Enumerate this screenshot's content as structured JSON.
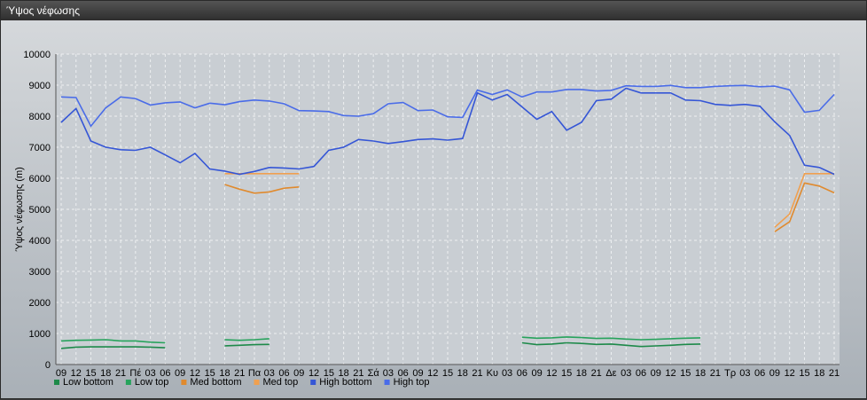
{
  "window": {
    "title": "Ύψος νέφωσης"
  },
  "chart_data": {
    "type": "line",
    "title": "",
    "xlabel": "",
    "ylabel": "Ύψος νέφωσης (m)",
    "ylim": [
      0,
      10000
    ],
    "yticks": [
      0,
      1000,
      2000,
      3000,
      4000,
      5000,
      6000,
      7000,
      8000,
      9000,
      10000
    ],
    "grid": true,
    "legend": "bottom-left",
    "categories": [
      "09",
      "12",
      "15",
      "18",
      "21",
      "Πέ",
      "03",
      "06",
      "09",
      "12",
      "15",
      "18",
      "21",
      "Πα",
      "03",
      "06",
      "09",
      "12",
      "15",
      "18",
      "21",
      "Σά",
      "03",
      "06",
      "09",
      "12",
      "15",
      "18",
      "21",
      "Κυ",
      "03",
      "06",
      "09",
      "12",
      "15",
      "18",
      "21",
      "Δε",
      "03",
      "06",
      "09",
      "12",
      "15",
      "18",
      "21",
      "Τρ",
      "03",
      "06",
      "09",
      "12",
      "15",
      "18",
      "21"
    ],
    "series": [
      {
        "name": "Low bottom",
        "color": "#1e8a4a",
        "values": [
          520,
          560,
          570,
          570,
          570,
          570,
          560,
          540,
          null,
          null,
          null,
          600,
          620,
          640,
          650,
          null,
          null,
          null,
          null,
          null,
          null,
          null,
          null,
          null,
          null,
          null,
          null,
          null,
          null,
          null,
          null,
          700,
          640,
          660,
          700,
          680,
          650,
          660,
          620,
          580,
          600,
          620,
          650,
          660,
          null,
          null,
          null,
          null,
          null,
          null,
          null,
          null,
          null
        ]
      },
      {
        "name": "Low top",
        "color": "#27a35c",
        "values": [
          760,
          780,
          790,
          800,
          760,
          760,
          720,
          700,
          null,
          null,
          null,
          800,
          780,
          800,
          830,
          null,
          null,
          null,
          null,
          null,
          null,
          null,
          null,
          null,
          null,
          null,
          null,
          null,
          null,
          null,
          null,
          880,
          850,
          860,
          890,
          870,
          840,
          850,
          820,
          800,
          810,
          830,
          850,
          860,
          null,
          null,
          null,
          null,
          null,
          null,
          null,
          null,
          null
        ]
      },
      {
        "name": "Med bottom",
        "color": "#e08a2e",
        "values": [
          null,
          null,
          null,
          null,
          null,
          null,
          null,
          null,
          null,
          null,
          null,
          5800,
          5650,
          5520,
          5560,
          5680,
          5720,
          null,
          null,
          null,
          null,
          null,
          null,
          null,
          null,
          null,
          null,
          null,
          null,
          null,
          null,
          null,
          null,
          null,
          null,
          null,
          null,
          null,
          null,
          null,
          null,
          null,
          null,
          null,
          null,
          null,
          null,
          null,
          4280,
          4600,
          5850,
          5750,
          5530
        ]
      },
      {
        "name": "Med top",
        "color": "#f0a050",
        "values": [
          null,
          null,
          null,
          null,
          null,
          null,
          null,
          null,
          null,
          null,
          null,
          6150,
          6150,
          6150,
          6150,
          6150,
          6150,
          null,
          null,
          null,
          null,
          null,
          null,
          null,
          null,
          null,
          null,
          null,
          null,
          null,
          null,
          null,
          null,
          null,
          null,
          null,
          null,
          null,
          null,
          null,
          null,
          null,
          null,
          null,
          null,
          null,
          null,
          null,
          4420,
          4850,
          6150,
          6150,
          6150
        ]
      },
      {
        "name": "High bottom",
        "color": "#3556d6",
        "values": [
          7800,
          8250,
          7200,
          7000,
          6920,
          6900,
          7000,
          6750,
          6500,
          6800,
          6300,
          6230,
          6130,
          6220,
          6350,
          6330,
          6300,
          6380,
          6900,
          7000,
          7250,
          7200,
          7120,
          7180,
          7250,
          7270,
          7230,
          7280,
          8750,
          8520,
          8700,
          8300,
          7900,
          8150,
          7550,
          7800,
          8500,
          8550,
          8900,
          8750,
          8750,
          8750,
          8520,
          8500,
          8380,
          8350,
          8380,
          8320,
          7820,
          7380,
          6420,
          6350,
          6130
        ]
      },
      {
        "name": "High top",
        "color": "#4a6ce8",
        "values": [
          8620,
          8600,
          7680,
          8270,
          8620,
          8570,
          8360,
          8430,
          8460,
          8270,
          8420,
          8370,
          8470,
          8520,
          8490,
          8400,
          8180,
          8170,
          8150,
          8020,
          8000,
          8080,
          8400,
          8440,
          8180,
          8200,
          7980,
          7960,
          8840,
          8700,
          8850,
          8620,
          8780,
          8780,
          8860,
          8860,
          8810,
          8830,
          8980,
          8960,
          8960,
          8990,
          8920,
          8920,
          8960,
          8980,
          8990,
          8950,
          8970,
          8850,
          8130,
          8190,
          8700
        ]
      }
    ]
  }
}
